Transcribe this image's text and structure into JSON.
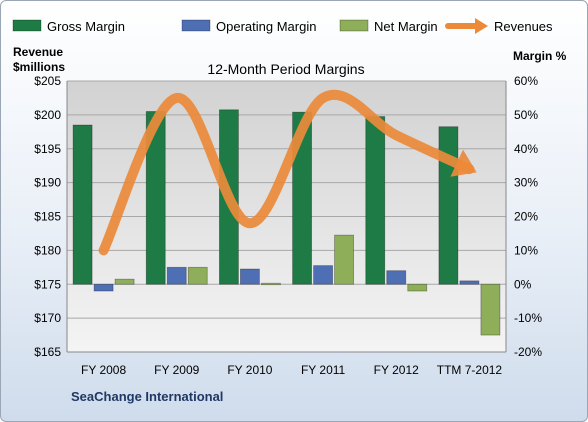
{
  "chart_data": {
    "type": "bar",
    "title": "12-Month Period Margins",
    "company": "SeaChange International",
    "categories": [
      "FY 2008",
      "FY 2009",
      "FY 2010",
      "FY 2011",
      "FY 2012",
      "TTM 7-2012"
    ],
    "series": [
      {
        "name": "Gross Margin",
        "axis": "right",
        "color": "#1e7b45",
        "values": [
          47,
          51,
          51.5,
          50.8,
          49.5,
          46.5
        ]
      },
      {
        "name": "Operating Margin",
        "axis": "right",
        "color": "#4f6fb5",
        "values": [
          -2,
          5,
          4.5,
          5.5,
          4,
          1
        ]
      },
      {
        "name": "Net Margin",
        "axis": "right",
        "color": "#8fae5a",
        "values": [
          1.5,
          5,
          0.3,
          14.5,
          -2,
          -15
        ]
      },
      {
        "name": "Revenues",
        "axis": "left",
        "type": "line",
        "color": "#ec8a3a",
        "values": [
          180,
          202.5,
          184,
          202.5,
          197,
          192
        ]
      }
    ],
    "left_axis": {
      "title_line1": "Revenue",
      "title_line2": "$millions",
      "ylim": [
        165,
        205
      ],
      "ticks": [
        "$165",
        "$170",
        "$175",
        "$180",
        "$185",
        "$190",
        "$195",
        "$200",
        "$205"
      ]
    },
    "right_axis": {
      "title": "Margin %",
      "ylim": [
        -20,
        60
      ],
      "ticks": [
        "-20%",
        "-10%",
        "0%",
        "10%",
        "20%",
        "30%",
        "40%",
        "50%",
        "60%"
      ]
    },
    "grid": true,
    "legend_position": "top"
  }
}
